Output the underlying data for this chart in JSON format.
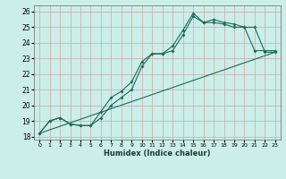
{
  "xlabel": "Humidex (Indice chaleur)",
  "bg_color": "#cceee8",
  "grid_color": "#aad4ce",
  "line_color": "#1a6b5a",
  "xlim": [
    -0.5,
    23.5
  ],
  "ylim": [
    17.8,
    26.4
  ],
  "xticks": [
    0,
    1,
    2,
    3,
    4,
    5,
    6,
    7,
    8,
    9,
    10,
    11,
    12,
    13,
    14,
    15,
    16,
    17,
    18,
    19,
    20,
    21,
    22,
    23
  ],
  "yticks": [
    18,
    19,
    20,
    21,
    22,
    23,
    24,
    25,
    26
  ],
  "line1_x": [
    0,
    1,
    2,
    3,
    4,
    5,
    6,
    7,
    8,
    9,
    10,
    11,
    12,
    13,
    14,
    15,
    16,
    17,
    18,
    19,
    20,
    21,
    22,
    23
  ],
  "line1_y": [
    18.2,
    19.0,
    19.2,
    18.8,
    18.7,
    18.7,
    19.6,
    20.5,
    20.9,
    21.5,
    22.8,
    23.3,
    23.3,
    23.8,
    24.8,
    25.9,
    25.3,
    25.5,
    25.3,
    25.2,
    25.0,
    23.5,
    23.5,
    23.5
  ],
  "line2_x": [
    0,
    1,
    2,
    3,
    4,
    5,
    6,
    7,
    8,
    9,
    10,
    11,
    12,
    13,
    14,
    15,
    16,
    17,
    18,
    19,
    20,
    21,
    22,
    23
  ],
  "line2_y": [
    18.2,
    19.0,
    19.2,
    18.8,
    18.7,
    18.7,
    19.2,
    20.0,
    20.5,
    21.0,
    22.5,
    23.3,
    23.3,
    23.5,
    24.5,
    25.7,
    25.3,
    25.3,
    25.2,
    25.0,
    25.0,
    25.0,
    23.4,
    23.4
  ],
  "line3_x": [
    0,
    23
  ],
  "line3_y": [
    18.2,
    23.4
  ]
}
